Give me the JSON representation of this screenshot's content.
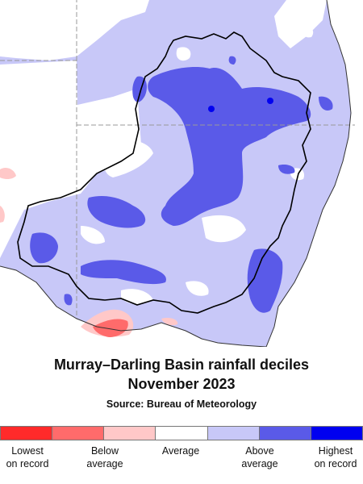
{
  "title_line1": "Murray–Darling Basin rainfall deciles",
  "title_line2": "November 2023",
  "source": "Source: Bureau of Meteorology",
  "legend": [
    {
      "color": "#ff2a2a",
      "label1": "Lowest",
      "label2": "on record"
    },
    {
      "color": "#ff6b6b",
      "label1": "",
      "label2": ""
    },
    {
      "color": "#ffc8c8",
      "label1": "Below",
      "label2": "average"
    },
    {
      "color": "#ffffff",
      "label1": "Average",
      "label2": ""
    },
    {
      "color": "#c8c8f8",
      "label1": "",
      "label2": ""
    },
    {
      "color": "#5a5ae8",
      "label1": "Above",
      "label2": "average"
    },
    {
      "color": "#0000f0",
      "label1": "Highest",
      "label2": "on record"
    }
  ],
  "colors": {
    "above_average_light": "#c8c8f8",
    "above_average_dark": "#5a5ae8",
    "highest_on_record": "#0000f0",
    "below_average_light": "#ffc8c8",
    "below_average_dark": "#ff6b6b",
    "average": "#ffffff"
  }
}
